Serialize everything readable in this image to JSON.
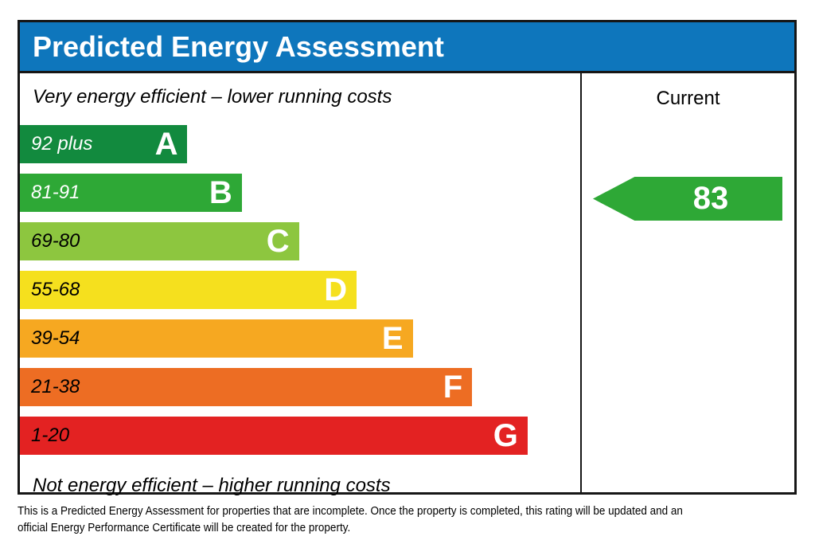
{
  "header": {
    "title": "Predicted Energy Assessment",
    "bg_color": "#0e76bc"
  },
  "scale": {
    "top_label": "Very energy efficient – lower running costs",
    "bottom_label": "Not energy efficient – higher running costs"
  },
  "current_column": {
    "header": "Current",
    "value": "83",
    "arrow_color": "#2ea836"
  },
  "bands": [
    {
      "letter": "A",
      "range": "92 plus",
      "color": "#128a3e",
      "text_color": "#ffffff",
      "width_pct": 29.9
    },
    {
      "letter": "B",
      "range": "81-91",
      "color": "#2ea836",
      "text_color": "#ffffff",
      "width_pct": 39.6
    },
    {
      "letter": "C",
      "range": "69-80",
      "color": "#8dc63f",
      "text_color": "#000000",
      "width_pct": 49.8
    },
    {
      "letter": "D",
      "range": "55-68",
      "color": "#f5e01e",
      "text_color": "#000000",
      "width_pct": 60.1
    },
    {
      "letter": "E",
      "range": "39-54",
      "color": "#f6a821",
      "text_color": "#000000",
      "width_pct": 70.1
    },
    {
      "letter": "F",
      "range": "21-38",
      "color": "#ed6d23",
      "text_color": "#000000",
      "width_pct": 80.7
    },
    {
      "letter": "G",
      "range": "1-20",
      "color": "#e32222",
      "text_color": "#000000",
      "width_pct": 90.6
    }
  ],
  "footer": {
    "line1": "This is a Predicted Energy Assessment for properties that are incomplete. Once the property is completed, this rating will be updated and an",
    "line2": "official Energy Performance Certificate will be created for the property."
  },
  "chart_data": {
    "type": "bar",
    "title": "Predicted Energy Assessment",
    "orientation": "horizontal",
    "categories": [
      "A",
      "B",
      "C",
      "D",
      "E",
      "F",
      "G"
    ],
    "category_ranges": [
      "92 plus",
      "81-91",
      "69-80",
      "55-68",
      "39-54",
      "21-38",
      "1-20"
    ],
    "bar_length_pct": [
      29.9,
      39.6,
      49.8,
      60.1,
      70.1,
      80.7,
      90.6
    ],
    "bar_colors": [
      "#128a3e",
      "#2ea836",
      "#8dc63f",
      "#f5e01e",
      "#f6a821",
      "#ed6d23",
      "#e32222"
    ],
    "series": [
      {
        "name": "Current",
        "values": [
          83
        ],
        "band": "B",
        "marker": "left-arrow",
        "color": "#2ea836"
      }
    ],
    "annotations": [
      "Very energy efficient – lower running costs",
      "Not energy efficient – higher running costs"
    ],
    "legend_position": "none",
    "grid": false
  }
}
